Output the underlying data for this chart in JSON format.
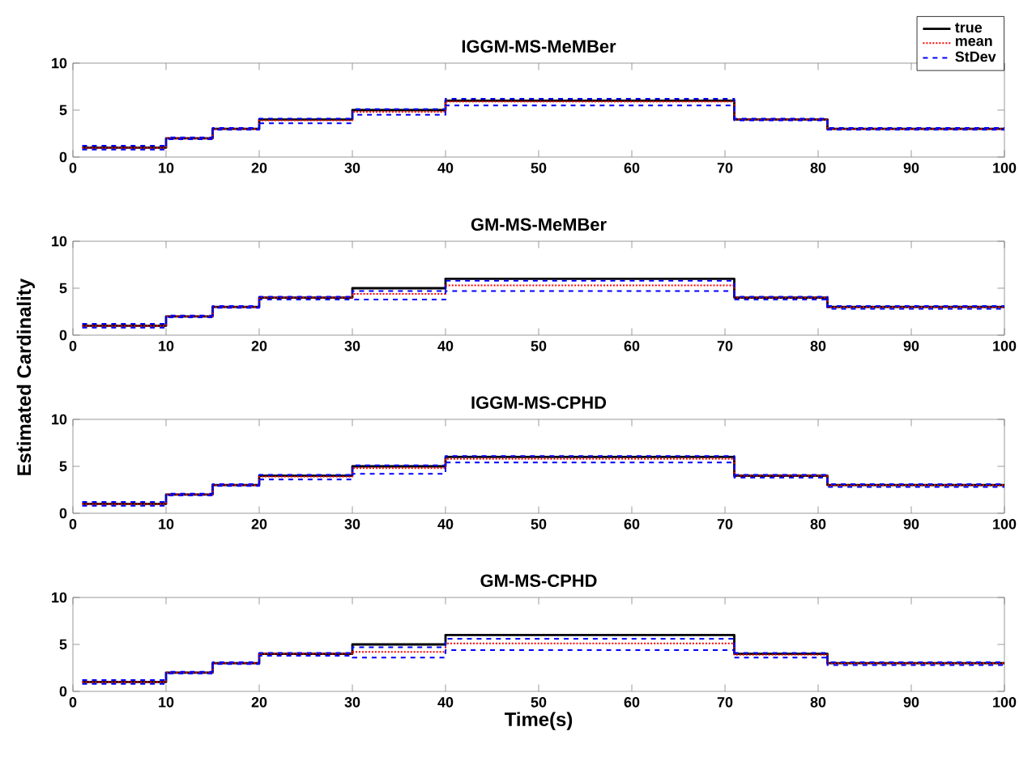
{
  "chart_data": [
    {
      "type": "step",
      "title": "IGGM-MS-MeMBer",
      "xlim": [
        0,
        100
      ],
      "ylim": [
        0,
        10
      ],
      "xticks": [
        0,
        10,
        20,
        30,
        40,
        50,
        60,
        70,
        80,
        90,
        100
      ],
      "yticks": [
        0,
        5,
        10
      ],
      "legend": "top right",
      "marker": "none",
      "series": [
        {
          "name": "true",
          "color": "#000000",
          "line_style": "solid",
          "x": [
            1,
            10,
            15,
            20,
            30,
            40,
            71,
            81,
            100
          ],
          "values": [
            1,
            2,
            3,
            4,
            5,
            6,
            4,
            3,
            3
          ]
        },
        {
          "name": "mean",
          "color": "#ff0000",
          "line_style": "dotted",
          "x": [
            1,
            10,
            15,
            20,
            30,
            40,
            71,
            81,
            100
          ],
          "values": [
            1,
            2,
            3,
            3.9,
            4.8,
            5.9,
            4,
            3,
            3
          ]
        },
        {
          "name": "StDev",
          "color": "#0000ff",
          "line_style": "dashed",
          "x": [
            1,
            10,
            15,
            20,
            30,
            40,
            71,
            81,
            100
          ],
          "values": [
            1.2,
            2.1,
            3.1,
            4.1,
            5.1,
            6.2,
            4.1,
            3.1,
            3.1
          ]
        },
        {
          "color": "#0000ff",
          "line_style": "dashed",
          "x": [
            1,
            10,
            15,
            20,
            30,
            40,
            71,
            81,
            100
          ],
          "values": [
            0.8,
            1.9,
            2.9,
            3.6,
            4.5,
            5.5,
            3.9,
            2.9,
            2.9
          ]
        }
      ]
    },
    {
      "type": "step",
      "title": "GM-MS-MeMBer",
      "ylabel": "Estimated Cardinality",
      "xlim": [
        0,
        100
      ],
      "ylim": [
        0,
        10
      ],
      "xticks": [
        0,
        10,
        20,
        30,
        40,
        50,
        60,
        70,
        80,
        90,
        100
      ],
      "yticks": [
        0,
        5,
        10
      ],
      "marker": "none",
      "series": [
        {
          "color": "#000000",
          "line_style": "solid",
          "x": [
            1,
            10,
            15,
            20,
            30,
            40,
            71,
            81,
            100
          ],
          "values": [
            1,
            2,
            3,
            4,
            5,
            6,
            4,
            3,
            3
          ]
        },
        {
          "color": "#ff0000",
          "line_style": "dotted",
          "x": [
            1,
            10,
            15,
            20,
            30,
            40,
            71,
            81,
            100
          ],
          "values": [
            1,
            2,
            3,
            4,
            4.4,
            5.3,
            4,
            3,
            3
          ]
        },
        {
          "color": "#0000ff",
          "line_style": "dashed",
          "x": [
            1,
            10,
            15,
            20,
            30,
            40,
            71,
            81,
            100
          ],
          "values": [
            1.2,
            2.1,
            3.1,
            4.1,
            4.7,
            5.8,
            4.1,
            3.1,
            3.1
          ]
        },
        {
          "color": "#0000ff",
          "line_style": "dashed",
          "x": [
            1,
            10,
            15,
            20,
            30,
            40,
            71,
            81,
            100
          ],
          "values": [
            0.8,
            1.9,
            2.9,
            3.8,
            3.8,
            4.7,
            3.8,
            2.8,
            2.8
          ]
        }
      ]
    },
    {
      "type": "step",
      "title": "IGGM-MS-CPHD",
      "xlim": [
        0,
        100
      ],
      "ylim": [
        0,
        10
      ],
      "xticks": [
        0,
        10,
        20,
        30,
        40,
        50,
        60,
        70,
        80,
        90,
        100
      ],
      "yticks": [
        0,
        5,
        10
      ],
      "marker": "none",
      "series": [
        {
          "color": "#000000",
          "line_style": "solid",
          "x": [
            1,
            10,
            15,
            20,
            30,
            40,
            71,
            81,
            100
          ],
          "values": [
            1,
            2,
            3,
            4,
            5,
            6,
            4,
            3,
            3
          ]
        },
        {
          "color": "#ff0000",
          "line_style": "dotted",
          "x": [
            1,
            10,
            15,
            20,
            30,
            40,
            71,
            81,
            100
          ],
          "values": [
            1,
            2,
            3,
            3.9,
            4.8,
            5.8,
            4,
            3,
            3
          ]
        },
        {
          "color": "#0000ff",
          "line_style": "dashed",
          "x": [
            1,
            10,
            15,
            20,
            30,
            40,
            71,
            81,
            100
          ],
          "values": [
            1.2,
            2.1,
            3.1,
            4.1,
            5.1,
            6.1,
            4.1,
            3.1,
            3.1
          ]
        },
        {
          "color": "#0000ff",
          "line_style": "dashed",
          "x": [
            1,
            10,
            15,
            20,
            30,
            40,
            71,
            81,
            100
          ],
          "values": [
            0.8,
            1.9,
            2.9,
            3.6,
            4.2,
            5.4,
            3.8,
            2.8,
            2.8
          ]
        }
      ]
    },
    {
      "type": "step",
      "title": "GM-MS-CPHD",
      "xlabel": "Time(s)",
      "xlim": [
        0,
        100
      ],
      "ylim": [
        0,
        10
      ],
      "xticks": [
        0,
        10,
        20,
        30,
        40,
        50,
        60,
        70,
        80,
        90,
        100
      ],
      "yticks": [
        0,
        5,
        10
      ],
      "marker": "none",
      "series": [
        {
          "color": "#000000",
          "line_style": "solid",
          "x": [
            1,
            10,
            15,
            20,
            30,
            40,
            71,
            81,
            100
          ],
          "values": [
            1,
            2,
            3,
            4,
            5,
            6,
            4,
            3,
            3
          ]
        },
        {
          "color": "#ff0000",
          "line_style": "dotted",
          "x": [
            1,
            10,
            15,
            20,
            30,
            40,
            71,
            81,
            100
          ],
          "values": [
            1,
            2,
            3,
            4,
            4.2,
            5.1,
            3.9,
            3,
            3
          ]
        },
        {
          "color": "#0000ff",
          "line_style": "dashed",
          "x": [
            1,
            10,
            15,
            20,
            30,
            40,
            71,
            81,
            100
          ],
          "values": [
            1.2,
            2.1,
            3.1,
            4.1,
            4.7,
            5.6,
            4.1,
            3.1,
            3.1
          ]
        },
        {
          "color": "#0000ff",
          "line_style": "dashed",
          "x": [
            1,
            10,
            15,
            20,
            30,
            40,
            71,
            81,
            100
          ],
          "values": [
            0.8,
            1.9,
            2.9,
            3.8,
            3.6,
            4.4,
            3.6,
            2.8,
            2.8
          ]
        }
      ]
    }
  ]
}
